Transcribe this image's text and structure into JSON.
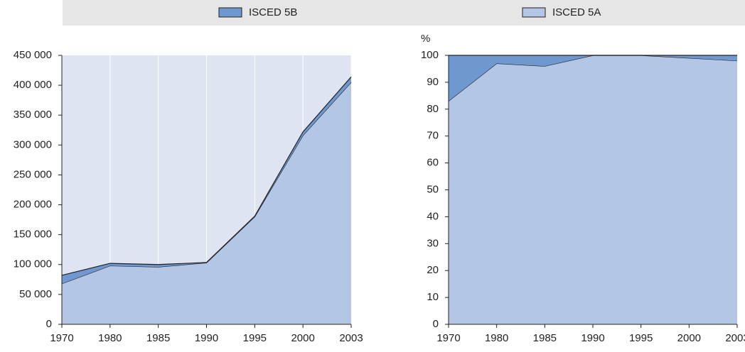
{
  "chart_data": [
    {
      "type": "area",
      "categories": [
        "1970",
        "1980",
        "1985",
        "1990",
        "1995",
        "2000",
        "2003"
      ],
      "series": [
        {
          "name": "ISCED 5B",
          "color": "#7098d0",
          "values": [
            14000,
            4000,
            4000,
            500,
            1000,
            6000,
            9000
          ]
        },
        {
          "name": "ISCED 5A",
          "color": "#b3c6e6",
          "values": [
            68000,
            98000,
            96000,
            103000,
            180000,
            316000,
            405000
          ]
        }
      ],
      "ylim": [
        0,
        450000
      ],
      "yticks": [
        0,
        {
          "value": 50000,
          "label": "50 000"
        },
        {
          "value": 100000,
          "label": "100 000"
        },
        {
          "value": 150000,
          "label": "150 000"
        },
        {
          "value": 200000,
          "label": "200 000"
        },
        {
          "value": 250000,
          "label": "250 000"
        },
        {
          "value": 300000,
          "label": "300 000"
        },
        {
          "value": 350000,
          "label": "350 000"
        },
        {
          "value": 400000,
          "label": "400 000"
        },
        {
          "value": 450000,
          "label": "450 000"
        }
      ],
      "grid": true,
      "background": "#dfe4f3"
    },
    {
      "type": "area",
      "y_label": "%",
      "categories": [
        "1970",
        "1980",
        "1985",
        "1990",
        "1995",
        "2000",
        "2003"
      ],
      "series": [
        {
          "color": "#7098d0",
          "values": [
            17,
            3,
            4,
            0,
            0,
            1,
            2
          ]
        },
        {
          "color": "#b3c6e6",
          "values": [
            83,
            97,
            96,
            100,
            100,
            99,
            98
          ]
        }
      ],
      "ylim": [
        0,
        100
      ],
      "yticks": [
        0,
        10,
        20,
        30,
        40,
        50,
        60,
        70,
        80,
        90,
        100
      ],
      "grid": false,
      "background": "#dfe4f3"
    }
  ]
}
